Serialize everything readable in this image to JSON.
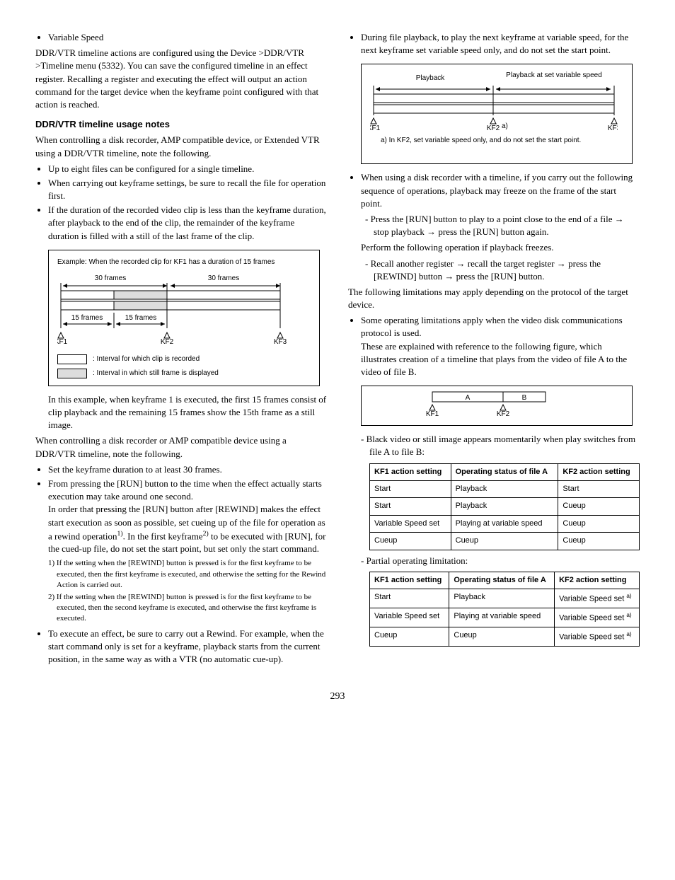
{
  "left": {
    "variable_speed": "Variable Speed",
    "intro_para": "DDR/VTR timeline actions are configured using the Device >DDR/VTR >Timeline menu (5332). You can save the configured timeline in an effect register. Recalling a register and executing the effect will output an action command for the target device when the keyframe point configured with that action is reached.",
    "heading1": "DDR/VTR timeline usage notes",
    "para1": "When controlling a disk recorder, AMP compatible device, or Extended VTR using a DDR/VTR timeline, note the following.",
    "bullets1": [
      "Up to eight files can be configured for a single timeline.",
      "When carrying out keyframe settings, be sure to recall the file for operation first.",
      "If the duration of the recorded video clip is less than the keyframe duration, after playback to the end of the clip, the remainder of the keyframe duration is filled with a still of the last frame of the clip."
    ],
    "diagram1": {
      "title": "Example: When the recorded clip for KF1 has a duration of 15 frames",
      "frames30_1": "30 frames",
      "frames30_2": "30 frames",
      "frames15_1": "15 frames",
      "frames15_2": "15 frames",
      "kf1": "KF1",
      "kf2": "KF2",
      "kf3": "KF3",
      "legend1": ": Interval for which clip is recorded",
      "legend2": ": Interval in which still frame is displayed"
    },
    "diagram1_after": "In this example, when keyframe 1 is executed, the first 15 frames consist of clip playback and the remaining 15 frames show the 15th frame as a still image.",
    "para2": "When controlling a disk recorder or AMP compatible device using a DDR/VTR timeline, note the following.",
    "bullets2_item1": "Set the keyframe duration to at least 30 frames.",
    "bullets2_item2a": "From pressing the [RUN] button to the time when the effect actually starts execution may take around one second.",
    "bullets2_item2b_pre": "In order that pressing the [RUN] button after [REWIND] makes the effect start execution as soon as possible, set cueing up of the file for operation as a rewind operation",
    "bullets2_item2b_mid": ". In the first keyframe",
    "bullets2_item2b_end": " to be executed with [RUN], for the cued-up file, do not set the start point, but set only the start command.",
    "footnote1": "1) If the setting when the [REWIND] button is pressed is for the first keyframe to be executed, then the first keyframe is executed, and otherwise the setting for the Rewind Action is carried out.",
    "footnote2": "2) If the setting when the [REWIND] button is pressed is for the first keyframe to be executed, then the second keyframe is executed, and otherwise the first keyframe is executed.",
    "bullets2_item3": "To execute an effect, be sure to carry out a Rewind. For example, when the start command only is set for a keyframe, playback starts from the current position, in the same way as with a VTR (no automatic cue-up)."
  },
  "right": {
    "bullet1": "During file playback, to play the next keyframe at variable speed, for the next keyframe set variable speed only, and do not set the start point.",
    "diagram2": {
      "playback": "Playback",
      "playback_varspeed": "Playback at set variable speed",
      "kf1": "KF1",
      "kf2": "KF2",
      "kf2_sup": "a)",
      "kf3": "KF3",
      "note": "a) In KF2, set variable speed only, and do not set the start point."
    },
    "bullet2": "When using a disk recorder with a timeline, if you carry out the following sequence of operations, playback may freeze on the frame of the start point.",
    "dash1_pre": "Press the [RUN] button to play to a point close to the end of a file ",
    "dash1_mid1": " stop playback ",
    "dash1_mid2": " press the [RUN] button again.",
    "para_freeze": "Perform the following operation if playback freezes.",
    "dash2_pre": "Recall another register ",
    "dash2_mid1": " recall the target register ",
    "dash2_mid2": " press the [REWIND] button ",
    "dash2_mid3": " press the [RUN] button.",
    "para_limits": "The following limitations may apply depending on the protocol of the target device.",
    "bullet3a": "Some operating limitations apply when the video disk communications protocol is used.",
    "bullet3b": "These are explained with reference to the following figure, which illustrates creation of a timeline that plays from the video of file A to the video of file B.",
    "diagram3": {
      "a": "A",
      "b": "B",
      "kf1": "KF1",
      "kf2": "KF2"
    },
    "dash_table1": "Black video or still image appears momentarily when play switches from file A to file B:",
    "table1": {
      "headers": [
        "KF1 action setting",
        "Operating status of file A",
        "KF2 action setting"
      ],
      "rows": [
        [
          "Start",
          "Playback",
          "Start"
        ],
        [
          "Start",
          "Playback",
          "Cueup"
        ],
        [
          "Variable Speed set",
          "Playing at variable speed",
          "Cueup"
        ],
        [
          "Cueup",
          "Cueup",
          "Cueup"
        ]
      ]
    },
    "dash_table2": "Partial operating limitation:",
    "table2": {
      "headers": [
        "KF1 action setting",
        "Operating status of file A",
        "KF2 action setting"
      ],
      "rows": [
        [
          "Start",
          "Playback",
          "Variable Speed set <sup>a)</sup>"
        ],
        [
          "Variable Speed set",
          "Playing at variable speed",
          "Variable Speed set <sup>a)</sup>"
        ],
        [
          "Cueup",
          "Cueup",
          "Variable Speed set <sup>a)</sup>"
        ]
      ]
    }
  },
  "page_number": "293"
}
